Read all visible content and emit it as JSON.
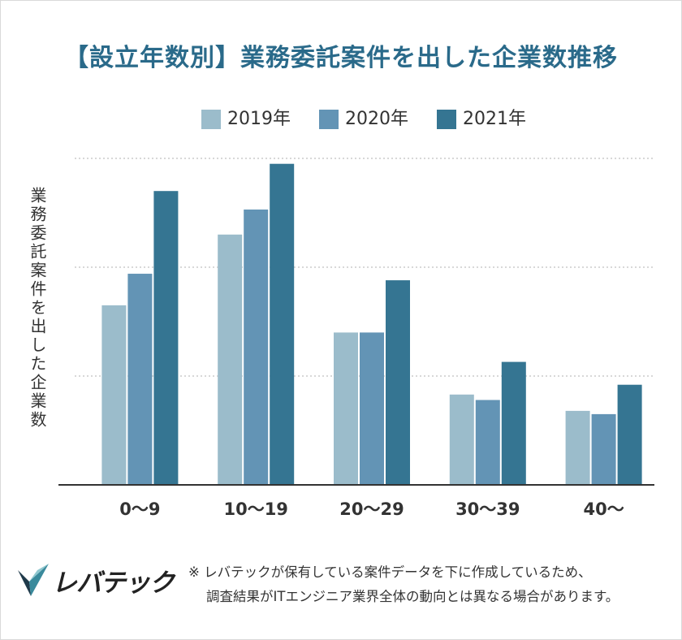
{
  "chart_data": {
    "type": "bar",
    "title": "【設立年数別】業務委託案件を出した企業数推移",
    "xlabel": "",
    "ylabel": "業務委託案件を出した企業数",
    "categories": [
      "0〜9",
      "10〜19",
      "20〜29",
      "30〜39",
      "40〜"
    ],
    "series": [
      {
        "name": "2019年",
        "values": [
          1.65,
          2.3,
          1.4,
          0.83,
          0.68
        ],
        "color": "#9bbccb"
      },
      {
        "name": "2020年",
        "values": [
          1.94,
          2.53,
          1.4,
          0.78,
          0.65
        ],
        "color": "#6394b5"
      },
      {
        "name": "2021年",
        "values": [
          2.7,
          2.95,
          1.88,
          1.13,
          0.92
        ],
        "color": "#357592"
      }
    ],
    "ylim": [
      0,
      3
    ],
    "yticks": [
      1,
      2,
      3
    ],
    "grid": true,
    "ticklabels_y_shown": false,
    "legend_position": "top"
  },
  "footer": {
    "note_line1": "※ レバテックが保有している案件データを下に作成しているため、",
    "note_line2": "調査結果がITエンジニア業界全体の動向とは異なる場合があります。",
    "logo_text": "レバテック"
  },
  "colors": {
    "title": "#2a6a8a",
    "grid": "#cccccc",
    "axis": "#333333"
  }
}
